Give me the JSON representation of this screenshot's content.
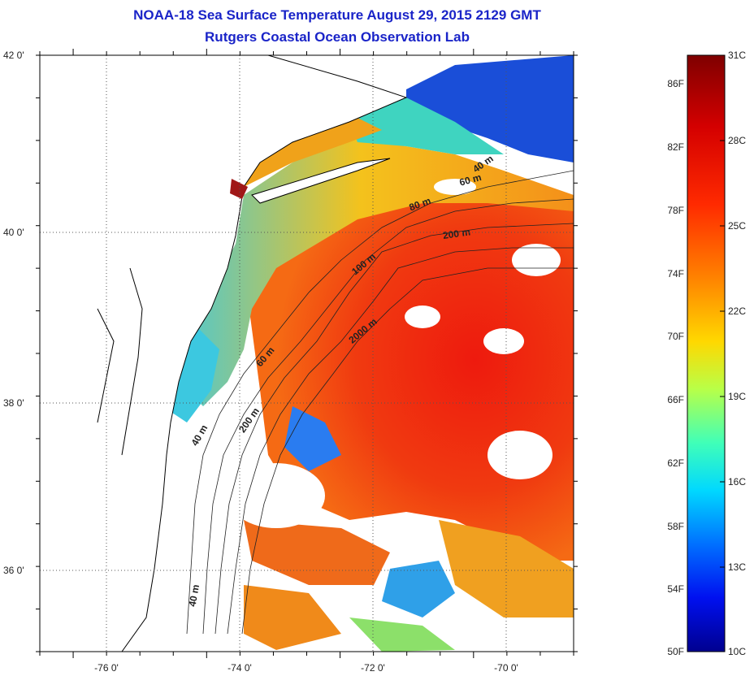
{
  "title": "NOAA-18 Sea Surface Temperature August 29, 2015 2129 GMT",
  "subtitle": "Rutgers Coastal Ocean Observation Lab",
  "map": {
    "lon_range": [
      -77,
      -69
    ],
    "lat_range": [
      35,
      42
    ],
    "lon_ticks": [
      "-76 0'",
      "-74 0'",
      "-72 0'",
      "-70 0'"
    ],
    "lat_ticks": [
      "42 0'",
      "40 0'",
      "38 0'",
      "36 0'"
    ],
    "grid": true,
    "depth_contour_labels": [
      "40 m",
      "60 m",
      "80 m",
      "60 m",
      "200 m",
      "100 m",
      "2000 m",
      "60 m",
      "200 m",
      "40 m",
      "40 m"
    ]
  },
  "colorbar": {
    "celsius_labels": [
      "31C",
      "28C",
      "25C",
      "22C",
      "19C",
      "16C",
      "13C",
      "10C"
    ],
    "fahrenheit_labels": [
      "86F",
      "82F",
      "78F",
      "74F",
      "70F",
      "66F",
      "62F",
      "58F",
      "54F",
      "50F"
    ],
    "range_c": [
      10,
      31
    ],
    "colormap": [
      "#7f0000",
      "#ff0000",
      "#ff7f00",
      "#ffff00",
      "#7fff7f",
      "#00ffff",
      "#0080ff",
      "#0000ff",
      "#00008f"
    ]
  }
}
